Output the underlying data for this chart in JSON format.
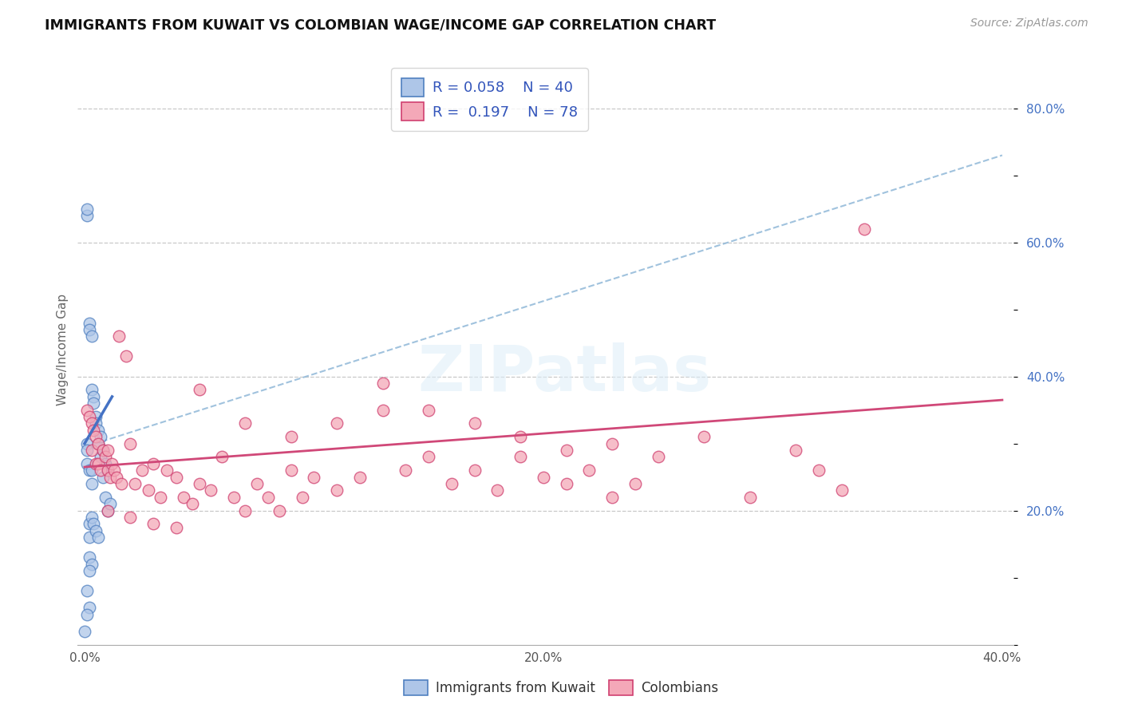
{
  "title": "IMMIGRANTS FROM KUWAIT VS COLOMBIAN WAGE/INCOME GAP CORRELATION CHART",
  "source": "Source: ZipAtlas.com",
  "ylabel": "Wage/Income Gap",
  "color_kuwait": "#aec6e8",
  "color_colombian": "#f4a8b8",
  "color_kuwait_edge": "#5080c0",
  "color_colombian_edge": "#d04070",
  "color_kuwait_line": "#4472c4",
  "color_colombian_line": "#d04878",
  "color_dashed": "#90b8d8",
  "background_color": "#ffffff",
  "grid_color": "#c8c8c8",
  "watermark": "ZIPatlas",
  "legend_text_color": "#3355bb",
  "kuwait_x": [
    0.0,
    0.001,
    0.001,
    0.001,
    0.001,
    0.001,
    0.001,
    0.002,
    0.002,
    0.002,
    0.002,
    0.002,
    0.002,
    0.002,
    0.003,
    0.003,
    0.003,
    0.003,
    0.003,
    0.003,
    0.004,
    0.004,
    0.004,
    0.005,
    0.005,
    0.005,
    0.006,
    0.006,
    0.006,
    0.007,
    0.007,
    0.008,
    0.008,
    0.009,
    0.009,
    0.01,
    0.01,
    0.011,
    0.001,
    0.002
  ],
  "kuwait_y": [
    0.02,
    0.64,
    0.65,
    0.3,
    0.29,
    0.27,
    0.08,
    0.48,
    0.47,
    0.26,
    0.18,
    0.16,
    0.13,
    0.055,
    0.46,
    0.38,
    0.26,
    0.24,
    0.19,
    0.12,
    0.37,
    0.36,
    0.18,
    0.34,
    0.33,
    0.17,
    0.32,
    0.3,
    0.16,
    0.31,
    0.28,
    0.29,
    0.25,
    0.27,
    0.22,
    0.26,
    0.2,
    0.21,
    0.045,
    0.11
  ],
  "colombian_x": [
    0.001,
    0.002,
    0.003,
    0.003,
    0.004,
    0.005,
    0.005,
    0.006,
    0.006,
    0.007,
    0.008,
    0.009,
    0.01,
    0.01,
    0.011,
    0.012,
    0.013,
    0.014,
    0.015,
    0.016,
    0.018,
    0.02,
    0.022,
    0.025,
    0.028,
    0.03,
    0.033,
    0.036,
    0.04,
    0.043,
    0.047,
    0.05,
    0.055,
    0.06,
    0.065,
    0.07,
    0.075,
    0.08,
    0.085,
    0.09,
    0.095,
    0.1,
    0.11,
    0.12,
    0.13,
    0.14,
    0.15,
    0.16,
    0.17,
    0.18,
    0.19,
    0.2,
    0.21,
    0.22,
    0.23,
    0.24,
    0.05,
    0.07,
    0.09,
    0.11,
    0.13,
    0.15,
    0.17,
    0.19,
    0.21,
    0.23,
    0.25,
    0.27,
    0.29,
    0.31,
    0.32,
    0.33,
    0.34,
    0.01,
    0.02,
    0.03,
    0.04
  ],
  "colombian_y": [
    0.35,
    0.34,
    0.33,
    0.29,
    0.32,
    0.31,
    0.27,
    0.3,
    0.27,
    0.26,
    0.29,
    0.28,
    0.29,
    0.26,
    0.25,
    0.27,
    0.26,
    0.25,
    0.46,
    0.24,
    0.43,
    0.3,
    0.24,
    0.26,
    0.23,
    0.27,
    0.22,
    0.26,
    0.25,
    0.22,
    0.21,
    0.24,
    0.23,
    0.28,
    0.22,
    0.2,
    0.24,
    0.22,
    0.2,
    0.26,
    0.22,
    0.25,
    0.23,
    0.25,
    0.35,
    0.26,
    0.28,
    0.24,
    0.26,
    0.23,
    0.28,
    0.25,
    0.24,
    0.26,
    0.22,
    0.24,
    0.38,
    0.33,
    0.31,
    0.33,
    0.39,
    0.35,
    0.33,
    0.31,
    0.29,
    0.3,
    0.28,
    0.31,
    0.22,
    0.29,
    0.26,
    0.23,
    0.62,
    0.2,
    0.19,
    0.18,
    0.175
  ],
  "kuwait_line_x": [
    0.0,
    0.012
  ],
  "kuwait_line_y": [
    0.3,
    0.37
  ],
  "colombian_line_x": [
    0.0,
    0.4
  ],
  "colombian_line_y": [
    0.265,
    0.365
  ],
  "dashed_line_x": [
    0.0,
    0.4
  ],
  "dashed_line_y": [
    0.295,
    0.73
  ],
  "xlim": [
    -0.003,
    0.405
  ],
  "ylim": [
    0.0,
    0.88
  ],
  "xticks": [
    0.0,
    0.05,
    0.1,
    0.15,
    0.2,
    0.25,
    0.3,
    0.35,
    0.4
  ],
  "yticks": [
    0.0,
    0.1,
    0.2,
    0.3,
    0.4,
    0.5,
    0.6,
    0.7,
    0.8
  ],
  "ytick_show": [
    0.2,
    0.4,
    0.6,
    0.8
  ],
  "xtick_show": [
    0.0,
    0.2,
    0.4
  ]
}
